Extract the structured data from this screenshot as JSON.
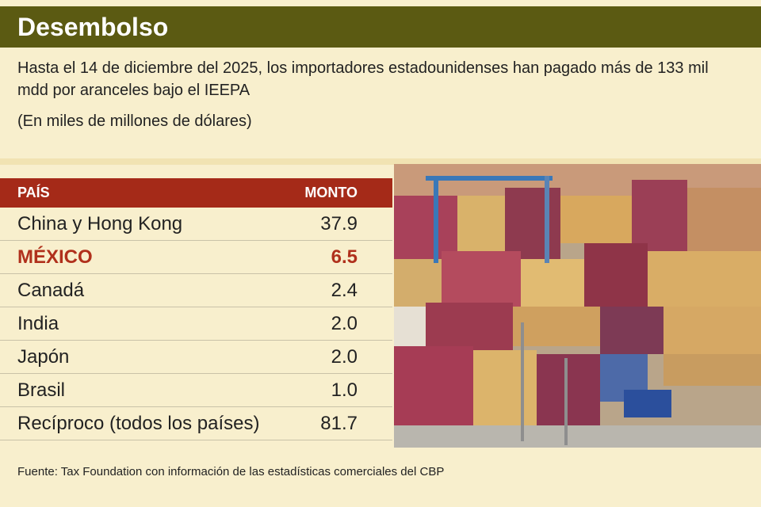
{
  "header": {
    "title": "Desembolso"
  },
  "subtitle": "Hasta el 14 de diciembre del 2025, los importadores estadounidenses han pagado más de 133 mil mdd por aranceles bajo el IEEPA",
  "note": "(En miles de millones de dólares)",
  "table": {
    "columns": [
      "PAÍS",
      "MONTO"
    ],
    "rows": [
      [
        "China y Hong Kong",
        "37.9"
      ],
      [
        "MÉXICO",
        "6.5"
      ],
      [
        "Canadá",
        "2.4"
      ],
      [
        "India",
        "2.0"
      ],
      [
        "Japón",
        "2.0"
      ],
      [
        "Brasil",
        "1.0"
      ],
      [
        "Recíproco (todos los países)",
        "81.7"
      ]
    ]
  },
  "source": "Fuente: Tax Foundation con información de las estadísticas comerciales del CBP"
}
